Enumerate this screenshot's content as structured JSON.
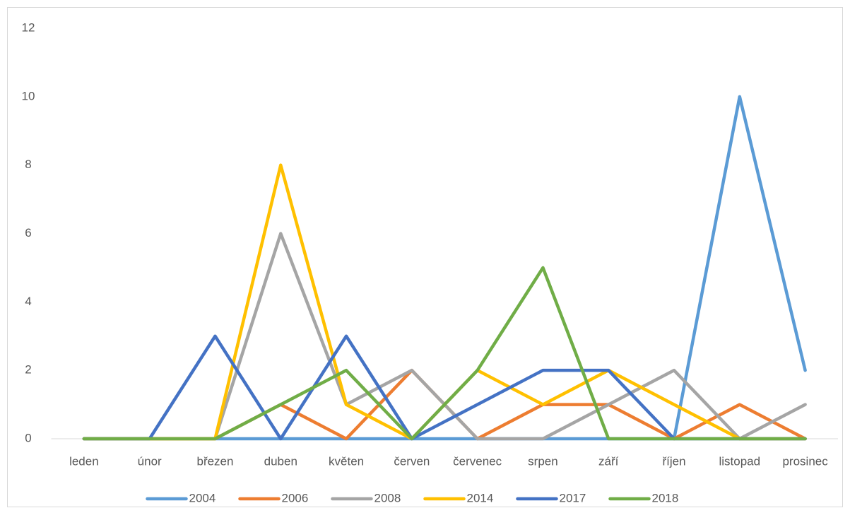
{
  "chart_data": {
    "type": "line",
    "categories": [
      "leden",
      "únor",
      "březen",
      "duben",
      "květen",
      "červen",
      "červenec",
      "srpen",
      "září",
      "říjen",
      "listopad",
      "prosinec"
    ],
    "series": [
      {
        "name": "2004",
        "color": "#5b9bd5",
        "values": [
          0,
          0,
          0,
          0,
          0,
          0,
          0,
          0,
          0,
          0,
          10,
          2
        ]
      },
      {
        "name": "2006",
        "color": "#ed7d31",
        "values": [
          0,
          0,
          0,
          1,
          0,
          2,
          0,
          1,
          1,
          0,
          1,
          0
        ]
      },
      {
        "name": "2008",
        "color": "#a5a5a5",
        "values": [
          0,
          0,
          0,
          6,
          1,
          2,
          0,
          0,
          1,
          2,
          0,
          1
        ]
      },
      {
        "name": "2014",
        "color": "#ffc000",
        "values": [
          0,
          0,
          0,
          8,
          1,
          0,
          2,
          1,
          2,
          1,
          0,
          0
        ]
      },
      {
        "name": "2017",
        "color": "#4472c4",
        "values": [
          0,
          0,
          3,
          0,
          3,
          0,
          1,
          2,
          2,
          0,
          0,
          0
        ]
      },
      {
        "name": "2018",
        "color": "#70ad47",
        "values": [
          0,
          0,
          0,
          1,
          2,
          0,
          2,
          5,
          0,
          0,
          0,
          0
        ]
      }
    ],
    "ylim": [
      0,
      12
    ],
    "yticks": [
      0,
      2,
      4,
      6,
      8,
      10,
      12
    ],
    "grid": false,
    "legend": "bottom"
  }
}
